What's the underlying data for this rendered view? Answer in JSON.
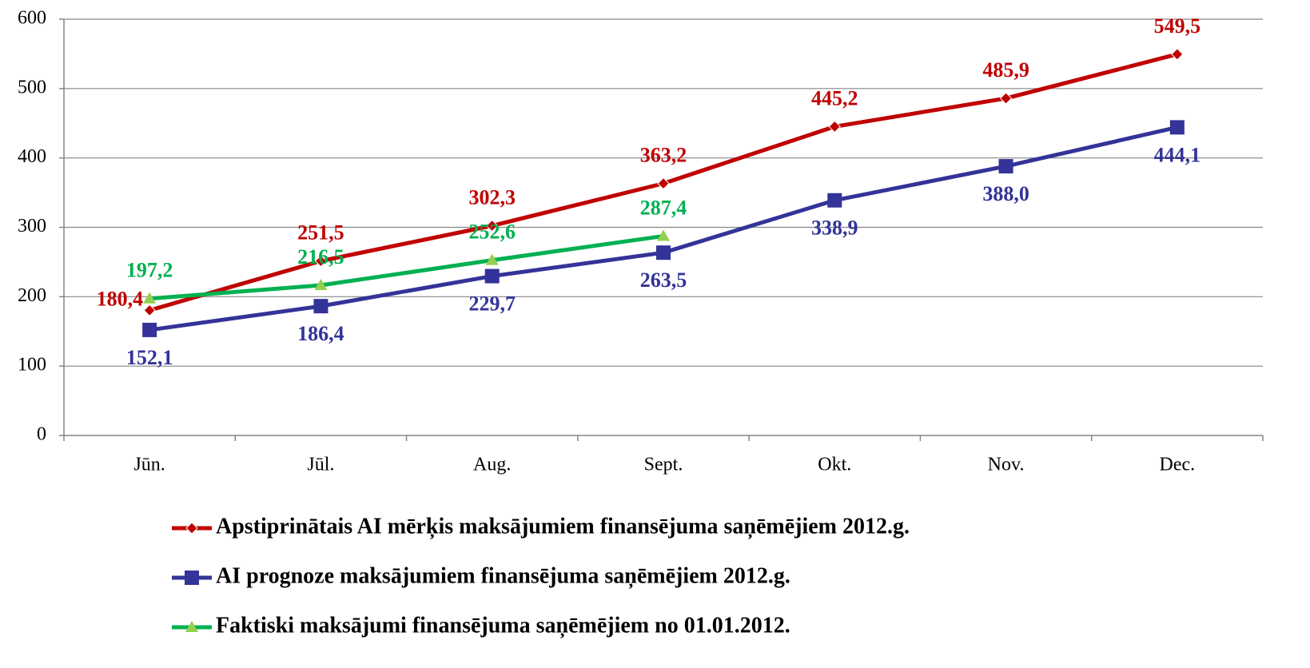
{
  "chart_data": {
    "type": "line",
    "categories": [
      "Jūn.",
      "Jūl.",
      "Aug.",
      "Sept.",
      "Okt.",
      "Nov.",
      "Dec."
    ],
    "series": [
      {
        "name": "Apstiprinātais AI mērķis maksājumiem finansējuma saņēmējiem 2012.g.",
        "color": "#c00000",
        "values": [
          180.4,
          251.5,
          302.3,
          363.2,
          445.2,
          485.9,
          549.5
        ],
        "value_labels": [
          "180,4",
          "251,5",
          "302,3",
          "363,2",
          "445,2",
          "485,9",
          "549,5"
        ]
      },
      {
        "name": "AI prognoze maksājumiem finansējuma saņēmējiem 2012.g.",
        "color": "#333399",
        "values": [
          152.1,
          186.4,
          229.7,
          263.5,
          338.9,
          388.0,
          444.1
        ],
        "value_labels": [
          "152,1",
          "186,4",
          "229,7",
          "263,5",
          "338,9",
          "388,0",
          "444,1"
        ]
      },
      {
        "name": "Faktiski maksājumi finansējuma saņēmējiem no 01.01.2012.",
        "color": "#00b050",
        "values": [
          197.2,
          216.5,
          252.6,
          287.4,
          null,
          null,
          null
        ],
        "value_labels": [
          "197,2",
          "216,5",
          "252,6",
          "287,4",
          null,
          null,
          null
        ]
      }
    ],
    "ylim": [
      0,
      600
    ],
    "yticks": [
      0,
      100,
      200,
      300,
      400,
      500,
      600
    ],
    "grid": true
  }
}
